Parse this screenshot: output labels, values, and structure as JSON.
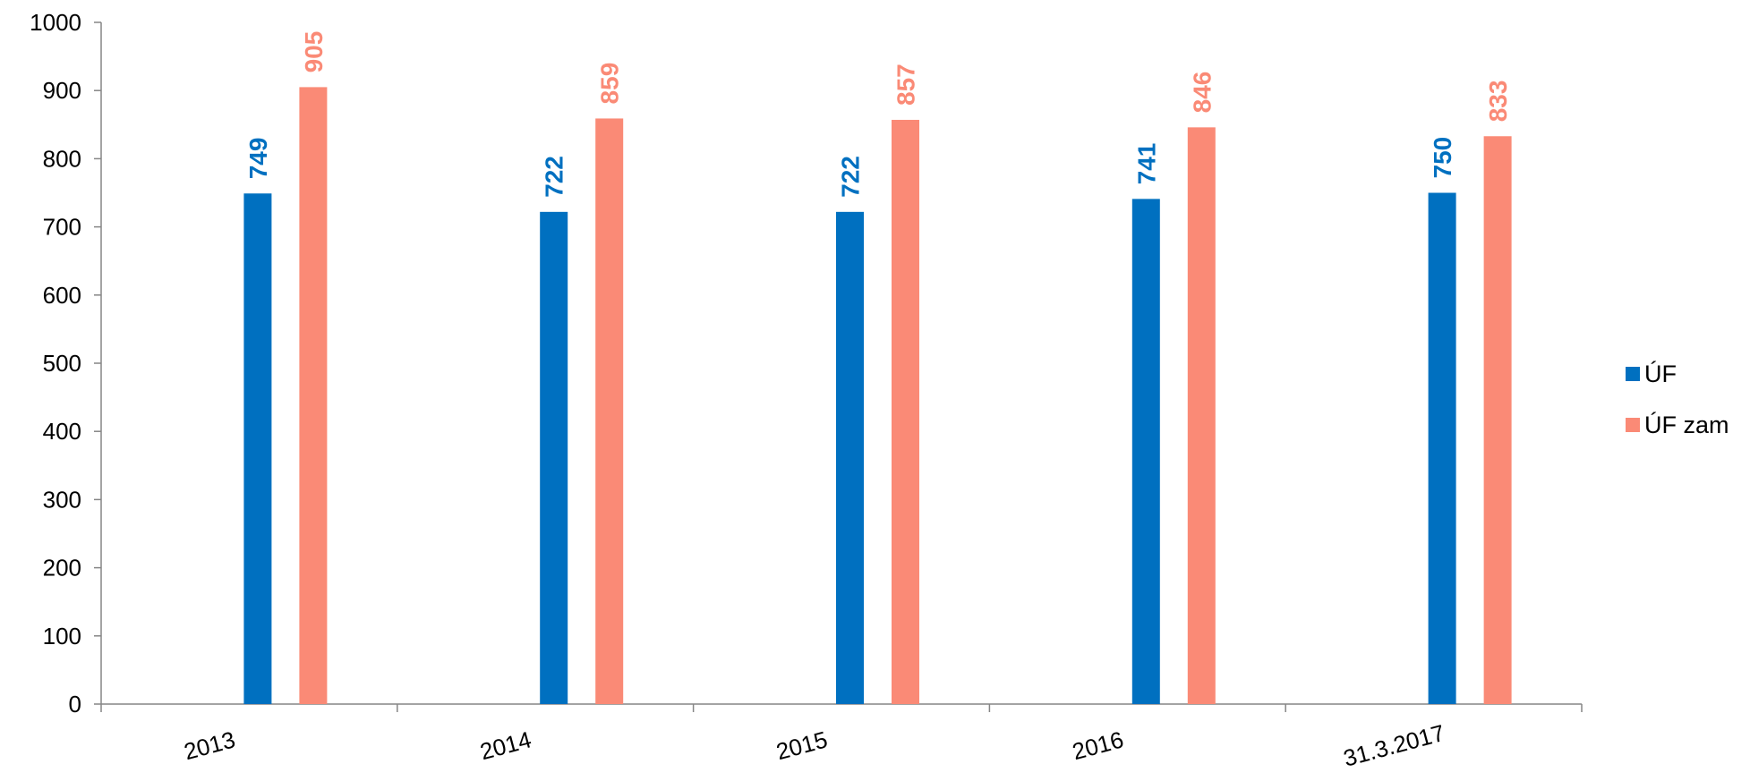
{
  "chart_data": {
    "type": "bar",
    "title": "",
    "xlabel": "",
    "ylabel": "",
    "categories": [
      "2013",
      "2014",
      "2015",
      "2016",
      "31.3.2017"
    ],
    "series": [
      {
        "name": "ÚF",
        "values": [
          749,
          722,
          722,
          741,
          750
        ],
        "color": "#0070C0"
      },
      {
        "name": "ÚF zam",
        "values": [
          905,
          859,
          857,
          846,
          833
        ],
        "color": "#FA8A76"
      }
    ],
    "ylim": [
      0,
      1000
    ],
    "yticks": [
      "0",
      "100",
      "200",
      "300",
      "400",
      "500",
      "600",
      "700",
      "800",
      "900",
      "1000"
    ],
    "grid": false,
    "legend_position": "right",
    "data_labels": true
  }
}
